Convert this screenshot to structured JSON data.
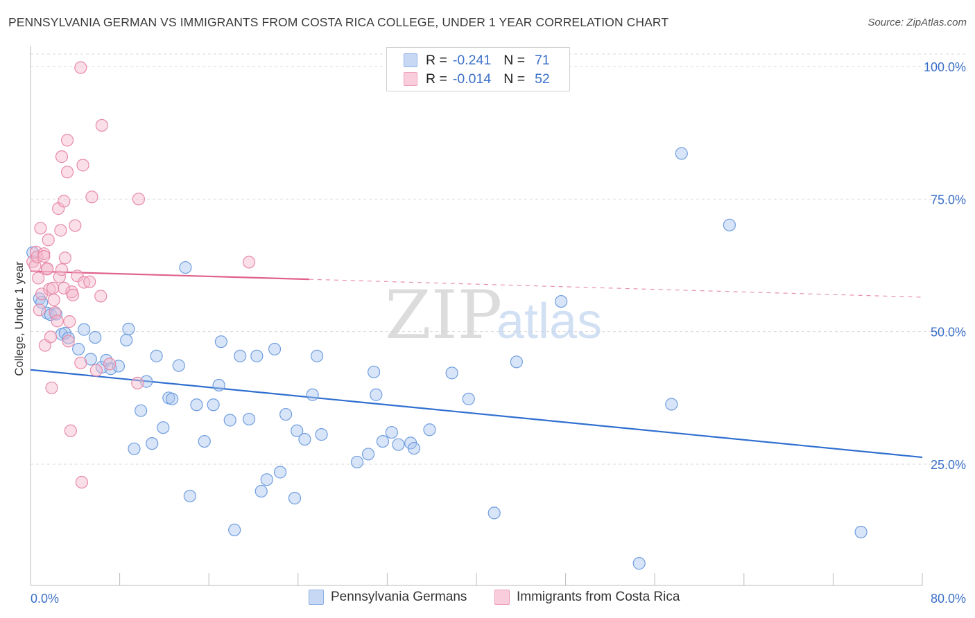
{
  "title": "PENNSYLVANIA GERMAN VS IMMIGRANTS FROM COSTA RICA COLLEGE, UNDER 1 YEAR CORRELATION CHART",
  "source": "Source: ZipAtlas.com",
  "watermark": {
    "zip": "ZIP",
    "atlas": "atlas"
  },
  "legend": {
    "rows": [
      {
        "r_label": "R =",
        "r_value": "-0.241",
        "n_label": "N =",
        "n_value": "71",
        "color": "#a8c4ee"
      },
      {
        "r_label": "R =",
        "r_value": "-0.014",
        "n_label": "N =",
        "n_value": "52",
        "color": "#f5b8cb"
      }
    ]
  },
  "bottom_legend": {
    "series_1": "Pennsylvania Germans",
    "series_2": "Immigrants from Costa Rica"
  },
  "chart_data": {
    "type": "scatter",
    "title": "PENNSYLVANIA GERMAN VS IMMIGRANTS FROM COSTA RICA COLLEGE, UNDER 1 YEAR CORRELATION CHART",
    "xlabel": "",
    "ylabel": "College, Under 1 year",
    "xlim": [
      0,
      80
    ],
    "ylim": [
      0,
      105
    ],
    "x_tick_labels": [
      "0.0%",
      "80.0%"
    ],
    "y_tick_labels": [
      "25.0%",
      "50.0%",
      "75.0%",
      "100.0%"
    ],
    "y_ticks": [
      25,
      50,
      75,
      100
    ],
    "grid": true,
    "legend_position": "top-center",
    "series": [
      {
        "name": "Pennsylvania Germans",
        "color": "#a8c4ee",
        "stroke": "#6f9ee0",
        "line_color": "#2f6fd0",
        "trend": {
          "x": [
            0,
            80
          ],
          "y": [
            42.8,
            26.3
          ],
          "dashed_from": null
        },
        "points": [
          [
            0.2,
            64.9
          ],
          [
            0.8,
            56.2
          ],
          [
            1.5,
            53.5
          ],
          [
            1.8,
            53.2
          ],
          [
            2.3,
            53.3
          ],
          [
            2.8,
            49.5
          ],
          [
            3.1,
            49.7
          ],
          [
            3.4,
            48.8
          ],
          [
            4.3,
            46.7
          ],
          [
            4.8,
            50.4
          ],
          [
            5.4,
            44.8
          ],
          [
            5.8,
            48.9
          ],
          [
            6.4,
            43.3
          ],
          [
            6.8,
            44.6
          ],
          [
            7.2,
            43.0
          ],
          [
            7.9,
            43.5
          ],
          [
            8.6,
            48.4
          ],
          [
            8.8,
            50.5
          ],
          [
            9.3,
            27.9
          ],
          [
            9.9,
            35.1
          ],
          [
            10.4,
            40.6
          ],
          [
            10.9,
            28.9
          ],
          [
            11.3,
            45.4
          ],
          [
            11.9,
            31.9
          ],
          [
            12.4,
            37.5
          ],
          [
            12.7,
            37.3
          ],
          [
            13.3,
            43.6
          ],
          [
            13.9,
            62.1
          ],
          [
            14.3,
            19.0
          ],
          [
            14.9,
            36.2
          ],
          [
            15.6,
            29.3
          ],
          [
            16.4,
            36.2
          ],
          [
            16.9,
            39.9
          ],
          [
            17.1,
            48.1
          ],
          [
            17.9,
            33.3
          ],
          [
            18.3,
            12.6
          ],
          [
            18.8,
            45.4
          ],
          [
            19.6,
            33.5
          ],
          [
            20.3,
            45.4
          ],
          [
            20.7,
            19.9
          ],
          [
            21.2,
            22.1
          ],
          [
            21.9,
            46.7
          ],
          [
            22.4,
            23.5
          ],
          [
            22.9,
            34.4
          ],
          [
            23.7,
            18.6
          ],
          [
            23.9,
            31.3
          ],
          [
            24.6,
            29.7
          ],
          [
            25.3,
            38.1
          ],
          [
            25.7,
            45.4
          ],
          [
            26.1,
            30.6
          ],
          [
            29.3,
            25.4
          ],
          [
            30.3,
            26.9
          ],
          [
            30.8,
            42.4
          ],
          [
            31.0,
            38.1
          ],
          [
            31.6,
            29.3
          ],
          [
            32.4,
            31.0
          ],
          [
            33.0,
            28.7
          ],
          [
            34.1,
            29.0
          ],
          [
            34.4,
            28.0
          ],
          [
            35.8,
            31.5
          ],
          [
            37.8,
            42.2
          ],
          [
            39.3,
            37.3
          ],
          [
            41.6,
            15.8
          ],
          [
            43.6,
            44.3
          ],
          [
            47.6,
            55.7
          ],
          [
            54.6,
            6.3
          ],
          [
            57.5,
            36.3
          ],
          [
            58.4,
            83.6
          ],
          [
            62.7,
            70.1
          ],
          [
            74.5,
            12.2
          ],
          [
            1.0,
            55.5
          ]
        ]
      },
      {
        "name": "Immigrants from Costa Rica",
        "color": "#f5b8cb",
        "stroke": "#e88aa8",
        "line_color": "#e0608a",
        "trend": {
          "x": [
            0,
            80
          ],
          "y": [
            61.4,
            56.5
          ],
          "dashed_from": 25
        },
        "points": [
          [
            0.2,
            63.2
          ],
          [
            0.4,
            62.4
          ],
          [
            0.5,
            65.0
          ],
          [
            0.6,
            64.1
          ],
          [
            0.7,
            60.1
          ],
          [
            0.8,
            54.1
          ],
          [
            0.9,
            69.5
          ],
          [
            1.0,
            57.1
          ],
          [
            1.2,
            64.7
          ],
          [
            1.3,
            47.4
          ],
          [
            1.5,
            61.8
          ],
          [
            1.6,
            67.3
          ],
          [
            1.7,
            58.0
          ],
          [
            1.8,
            49.0
          ],
          [
            1.9,
            39.4
          ],
          [
            2.1,
            56.0
          ],
          [
            2.2,
            53.6
          ],
          [
            2.5,
            73.2
          ],
          [
            2.6,
            60.3
          ],
          [
            2.7,
            69.1
          ],
          [
            2.8,
            61.7
          ],
          [
            2.8,
            83.0
          ],
          [
            3.0,
            58.2
          ],
          [
            3.0,
            74.6
          ],
          [
            3.1,
            63.9
          ],
          [
            3.3,
            86.1
          ],
          [
            3.4,
            48.2
          ],
          [
            3.3,
            80.1
          ],
          [
            3.5,
            51.9
          ],
          [
            3.6,
            31.3
          ],
          [
            3.7,
            57.5
          ],
          [
            3.8,
            56.9
          ],
          [
            4.0,
            70.0
          ],
          [
            4.2,
            60.5
          ],
          [
            4.5,
            44.1
          ],
          [
            4.6,
            21.6
          ],
          [
            4.7,
            81.4
          ],
          [
            4.8,
            59.3
          ],
          [
            5.3,
            59.4
          ],
          [
            5.5,
            75.4
          ],
          [
            5.9,
            42.7
          ],
          [
            6.3,
            56.7
          ],
          [
            6.4,
            88.9
          ],
          [
            7.1,
            43.9
          ],
          [
            9.6,
            40.3
          ],
          [
            9.7,
            75.0
          ],
          [
            19.6,
            63.1
          ],
          [
            4.5,
            99.8
          ],
          [
            1.2,
            64.2
          ],
          [
            1.5,
            61.9
          ],
          [
            2.0,
            58.2
          ],
          [
            2.4,
            52.0
          ]
        ]
      }
    ]
  }
}
